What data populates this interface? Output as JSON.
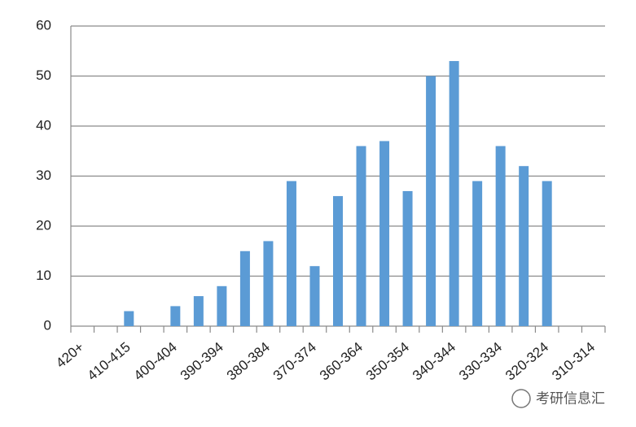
{
  "chart_data": {
    "type": "bar",
    "categories": [
      "420+",
      null,
      "410-415",
      null,
      "400-404",
      null,
      "390-394",
      null,
      "380-384",
      null,
      "370-374",
      null,
      "360-364",
      null,
      "350-354",
      null,
      "340-344",
      null,
      "330-334",
      null,
      "320-324",
      null,
      "310-314"
    ],
    "values": [
      0,
      0,
      3,
      0,
      4,
      6,
      8,
      15,
      17,
      29,
      12,
      26,
      36,
      37,
      27,
      50,
      53,
      29,
      36,
      32,
      29,
      0,
      0
    ],
    "color": "#5b9bd5",
    "ylim": [
      0,
      60
    ],
    "yticks": [
      0,
      10,
      20,
      30,
      40,
      50,
      60
    ],
    "grid": true,
    "annotation": "考研信息汇"
  }
}
